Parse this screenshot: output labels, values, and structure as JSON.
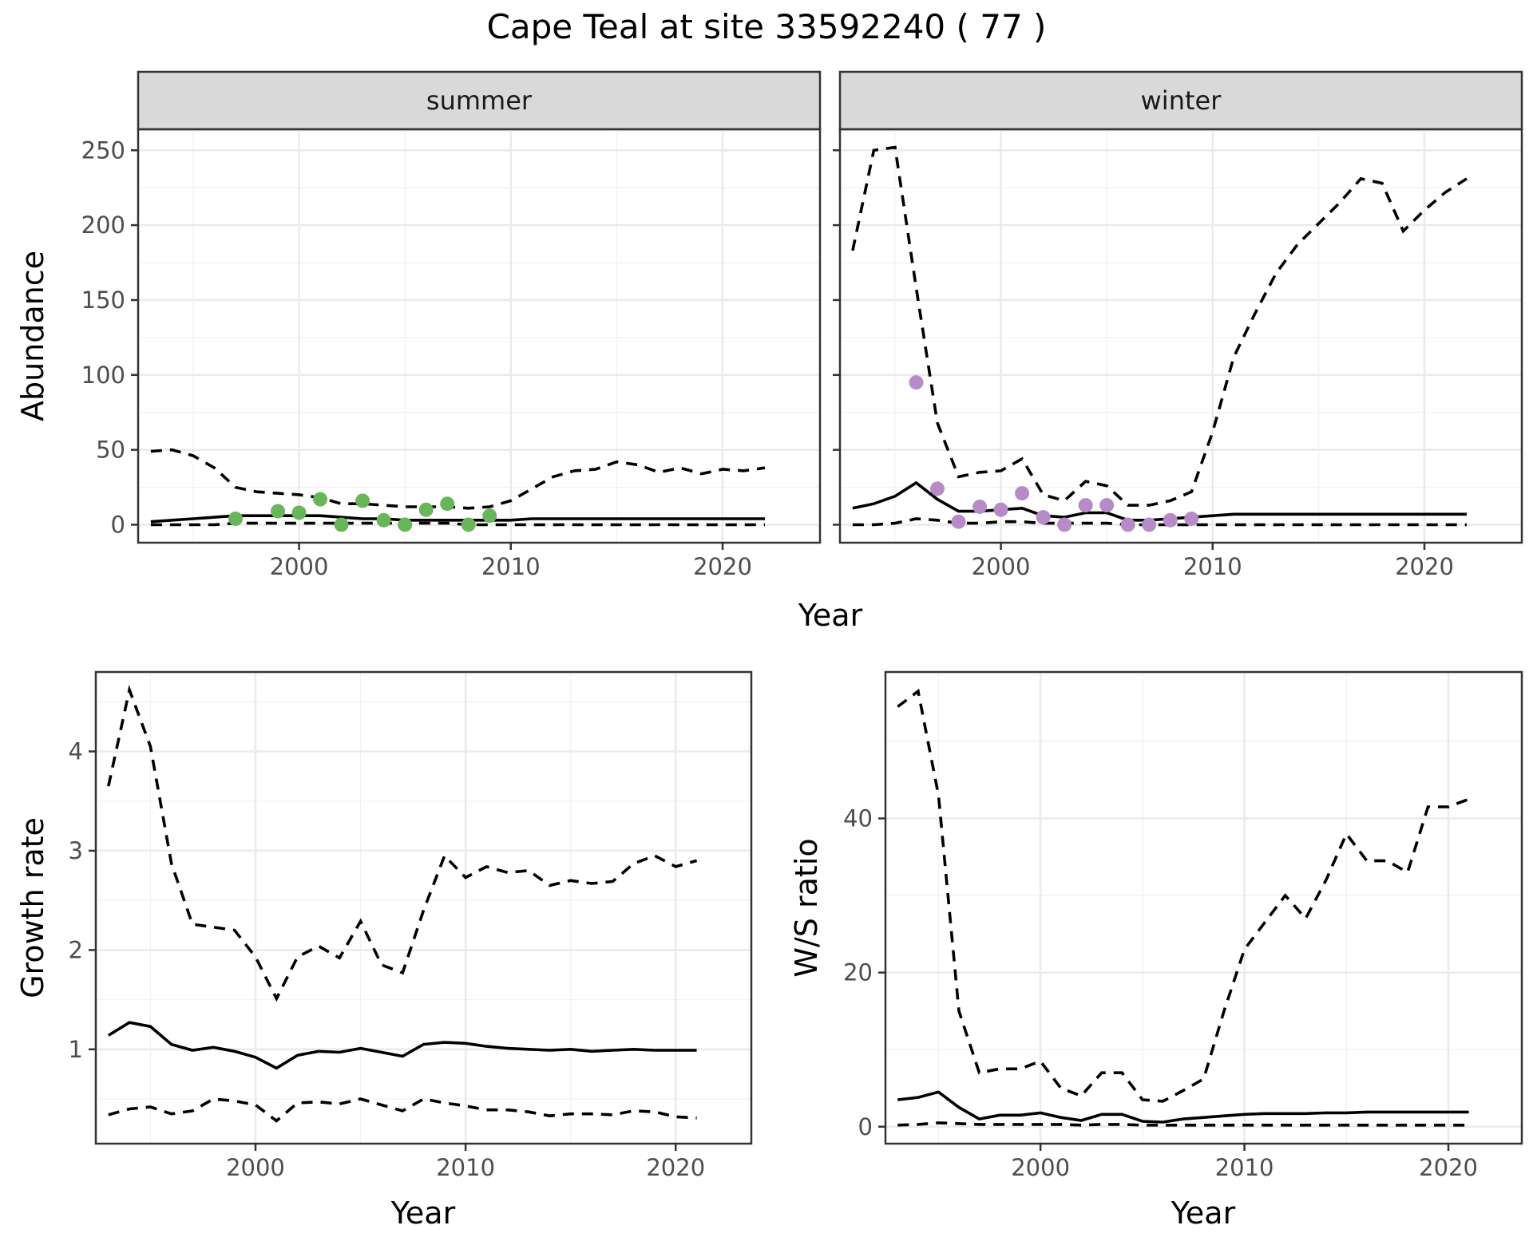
{
  "title": "Cape Teal at site 33592240 ( 77 )",
  "colors": {
    "summer_points": "#69b55a",
    "winter_points": "#b68bc8",
    "lines": "#000000"
  },
  "chart_data": [
    {
      "type": "line",
      "panel": "summer",
      "strip_label": "summer",
      "xlabel": "Year",
      "ylabel": "Abundance",
      "xlim": [
        1992.4,
        2024.6
      ],
      "ylim": [
        -12,
        264
      ],
      "x_ticks": [
        2000,
        2010,
        2020
      ],
      "y_ticks": [
        0,
        50,
        100,
        150,
        200,
        250
      ],
      "grid": true,
      "series": [
        {
          "style": "solid",
          "x": [
            1993,
            1994,
            1995,
            1996,
            1997,
            1998,
            1999,
            2000,
            2001,
            2002,
            2003,
            2004,
            2005,
            2006,
            2007,
            2008,
            2009,
            2010,
            2011,
            2012,
            2013,
            2014,
            2015,
            2016,
            2017,
            2018,
            2019,
            2020,
            2021,
            2022
          ],
          "values": [
            2,
            3,
            4,
            5,
            6,
            6,
            6,
            6,
            6,
            5,
            4,
            4,
            3,
            3,
            3,
            3,
            3,
            3,
            4,
            4,
            4,
            4,
            4,
            4,
            4,
            4,
            4,
            4,
            4,
            4
          ]
        },
        {
          "style": "dashed",
          "x": [
            1993,
            1994,
            1995,
            1996,
            1997,
            1998,
            1999,
            2000,
            2001,
            2002,
            2003,
            2004,
            2005,
            2006,
            2007,
            2008,
            2009,
            2010,
            2011,
            2012,
            2013,
            2014,
            2015,
            2016,
            2017,
            2018,
            2019,
            2020,
            2021,
            2022
          ],
          "values": [
            49,
            50,
            46,
            38,
            25,
            22,
            21,
            20,
            18,
            14,
            14,
            13,
            12,
            12,
            12,
            11,
            12,
            16,
            24,
            32,
            36,
            37,
            42,
            40,
            35,
            38,
            34,
            37,
            36,
            38
          ]
        },
        {
          "style": "dashed",
          "x": [
            1993,
            1994,
            1995,
            1996,
            1997,
            1998,
            1999,
            2000,
            2001,
            2002,
            2003,
            2004,
            2005,
            2006,
            2007,
            2008,
            2009,
            2010,
            2011,
            2012,
            2013,
            2014,
            2015,
            2016,
            2017,
            2018,
            2019,
            2020,
            2021,
            2022
          ],
          "values": [
            0,
            0,
            0,
            0,
            1,
            1,
            1,
            1,
            1,
            1,
            1,
            1,
            1,
            1,
            1,
            0,
            0,
            0,
            0,
            0,
            0,
            0,
            0,
            0,
            0,
            0,
            0,
            0,
            0,
            0
          ]
        },
        {
          "style": "points",
          "x": [
            1997,
            1999,
            2000,
            2001,
            2002,
            2003,
            2004,
            2005,
            2006,
            2007,
            2008,
            2009
          ],
          "values": [
            4,
            9,
            8,
            17,
            0,
            16,
            3,
            0,
            10,
            14,
            0,
            6
          ]
        }
      ]
    },
    {
      "type": "line",
      "panel": "winter",
      "strip_label": "winter",
      "xlabel": "Year",
      "ylabel": "Abundance",
      "xlim": [
        1992.4,
        2024.6
      ],
      "ylim": [
        -12,
        264
      ],
      "x_ticks": [
        2000,
        2010,
        2020
      ],
      "y_ticks": [
        0,
        50,
        100,
        150,
        200,
        250
      ],
      "grid": true,
      "series": [
        {
          "style": "solid",
          "x": [
            1993,
            1994,
            1995,
            1996,
            1997,
            1998,
            1999,
            2000,
            2001,
            2002,
            2003,
            2004,
            2005,
            2006,
            2007,
            2008,
            2009,
            2010,
            2011,
            2012,
            2013,
            2014,
            2015,
            2016,
            2017,
            2018,
            2019,
            2020,
            2021,
            2022
          ],
          "values": [
            11,
            14,
            19,
            28,
            17,
            9,
            9,
            10,
            11,
            6,
            5,
            8,
            8,
            3,
            3,
            4,
            5,
            6,
            7,
            7,
            7,
            7,
            7,
            7,
            7,
            7,
            7,
            7,
            7,
            7
          ]
        },
        {
          "style": "dashed",
          "x": [
            1993,
            1994,
            1995,
            1996,
            1997,
            1998,
            1999,
            2000,
            2001,
            2002,
            2003,
            2004,
            2005,
            2006,
            2007,
            2008,
            2009,
            2010,
            2011,
            2012,
            2013,
            2014,
            2015,
            2016,
            2017,
            2018,
            2019,
            2020,
            2021,
            2022
          ],
          "values": [
            183,
            250,
            252,
            158,
            68,
            32,
            35,
            36,
            44,
            20,
            16,
            29,
            26,
            13,
            13,
            16,
            22,
            62,
            112,
            141,
            168,
            187,
            201,
            215,
            231,
            228,
            196,
            210,
            222,
            231
          ]
        },
        {
          "style": "dashed",
          "x": [
            1993,
            1994,
            1995,
            1996,
            1997,
            1998,
            1999,
            2000,
            2001,
            2002,
            2003,
            2004,
            2005,
            2006,
            2007,
            2008,
            2009,
            2010,
            2011,
            2012,
            2013,
            2014,
            2015,
            2016,
            2017,
            2018,
            2019,
            2020,
            2021,
            2022
          ],
          "values": [
            0,
            0,
            1,
            4,
            3,
            1,
            1,
            2,
            2,
            1,
            1,
            1,
            1,
            0,
            0,
            0,
            0,
            0,
            0,
            0,
            0,
            0,
            0,
            0,
            0,
            0,
            0,
            0,
            0,
            0
          ]
        },
        {
          "style": "points",
          "x": [
            1996,
            1997,
            1998,
            1999,
            2000,
            2001,
            2002,
            2003,
            2004,
            2005,
            2006,
            2007,
            2008,
            2009
          ],
          "values": [
            95,
            24,
            2,
            12,
            10,
            21,
            5,
            0,
            13,
            13,
            0,
            0,
            3,
            4
          ]
        }
      ]
    },
    {
      "type": "line",
      "panel": "growth",
      "xlabel": "Year",
      "ylabel": "Growth rate",
      "xlim": [
        1992.4,
        2023.6
      ],
      "ylim": [
        0.05,
        4.8
      ],
      "x_ticks": [
        2000,
        2010,
        2020
      ],
      "y_ticks": [
        1,
        2,
        3,
        4
      ],
      "grid": true,
      "series": [
        {
          "style": "solid",
          "x": [
            1993,
            1994,
            1995,
            1996,
            1997,
            1998,
            1999,
            2000,
            2001,
            2002,
            2003,
            2004,
            2005,
            2006,
            2007,
            2008,
            2009,
            2010,
            2011,
            2012,
            2013,
            2014,
            2015,
            2016,
            2017,
            2018,
            2019,
            2020,
            2021
          ],
          "values": [
            1.14,
            1.27,
            1.23,
            1.05,
            0.99,
            1.02,
            0.98,
            0.92,
            0.81,
            0.94,
            0.98,
            0.97,
            1.01,
            0.97,
            0.93,
            1.05,
            1.07,
            1.06,
            1.03,
            1.01,
            1.0,
            0.99,
            1.0,
            0.98,
            0.99,
            1.0,
            0.99,
            0.99,
            0.99
          ]
        },
        {
          "style": "dashed",
          "x": [
            1993,
            1994,
            1995,
            1996,
            1997,
            1998,
            1999,
            2000,
            2001,
            2002,
            2003,
            2004,
            2005,
            2006,
            2007,
            2008,
            2009,
            2010,
            2011,
            2012,
            2013,
            2014,
            2015,
            2016,
            2017,
            2018,
            2019,
            2020,
            2021
          ],
          "values": [
            3.65,
            4.62,
            4.05,
            2.87,
            2.26,
            2.23,
            2.2,
            1.93,
            1.51,
            1.93,
            2.04,
            1.92,
            2.29,
            1.85,
            1.77,
            2.4,
            2.95,
            2.73,
            2.84,
            2.78,
            2.8,
            2.65,
            2.7,
            2.67,
            2.69,
            2.87,
            2.95,
            2.84,
            2.9
          ]
        },
        {
          "style": "dashed",
          "x": [
            1993,
            1994,
            1995,
            1996,
            1997,
            1998,
            1999,
            2000,
            2001,
            2002,
            2003,
            2004,
            2005,
            2006,
            2007,
            2008,
            2009,
            2010,
            2011,
            2012,
            2013,
            2014,
            2015,
            2016,
            2017,
            2018,
            2019,
            2020,
            2021
          ],
          "values": [
            0.34,
            0.4,
            0.42,
            0.35,
            0.38,
            0.5,
            0.48,
            0.44,
            0.28,
            0.46,
            0.47,
            0.45,
            0.5,
            0.44,
            0.38,
            0.5,
            0.46,
            0.43,
            0.39,
            0.39,
            0.37,
            0.33,
            0.35,
            0.35,
            0.34,
            0.38,
            0.37,
            0.32,
            0.31
          ]
        }
      ]
    },
    {
      "type": "line",
      "panel": "ratio",
      "xlabel": "Year",
      "ylabel": "W/S ratio",
      "xlim": [
        1992.4,
        2023.6
      ],
      "ylim": [
        -2.2,
        59
      ],
      "x_ticks": [
        2000,
        2010,
        2020
      ],
      "y_ticks": [
        0,
        20,
        40
      ],
      "grid": true,
      "series": [
        {
          "style": "solid",
          "x": [
            1993,
            1994,
            1995,
            1996,
            1997,
            1998,
            1999,
            2000,
            2001,
            2002,
            2003,
            2004,
            2005,
            2006,
            2007,
            2008,
            2009,
            2010,
            2011,
            2012,
            2013,
            2014,
            2015,
            2016,
            2017,
            2018,
            2019,
            2020,
            2021
          ],
          "values": [
            3.5,
            3.8,
            4.5,
            2.5,
            1.0,
            1.5,
            1.5,
            1.8,
            1.2,
            0.8,
            1.6,
            1.6,
            0.7,
            0.6,
            1.0,
            1.2,
            1.4,
            1.6,
            1.7,
            1.7,
            1.7,
            1.8,
            1.8,
            1.9,
            1.9,
            1.9,
            1.9,
            1.9,
            1.9
          ]
        },
        {
          "style": "dashed",
          "x": [
            1993,
            1994,
            1995,
            1996,
            1997,
            1998,
            1999,
            2000,
            2001,
            2002,
            2003,
            2004,
            2005,
            2006,
            2007,
            2008,
            2009,
            2010,
            2011,
            2012,
            2013,
            2014,
            2015,
            2016,
            2017,
            2018,
            2019,
            2020,
            2021
          ],
          "values": [
            54.5,
            56.5,
            43,
            15,
            7,
            7.5,
            7.5,
            8.5,
            5,
            4,
            7,
            7,
            3.5,
            3.3,
            4.7,
            6.2,
            15,
            23,
            26.5,
            30,
            27,
            32,
            38,
            34.5,
            34.5,
            33,
            41.5,
            41.5,
            42.5
          ]
        },
        {
          "style": "dashed",
          "x": [
            1993,
            1994,
            1995,
            1996,
            1997,
            1998,
            1999,
            2000,
            2001,
            2002,
            2003,
            2004,
            2005,
            2006,
            2007,
            2008,
            2009,
            2010,
            2011,
            2012,
            2013,
            2014,
            2015,
            2016,
            2017,
            2018,
            2019,
            2020,
            2021
          ],
          "values": [
            0.2,
            0.3,
            0.5,
            0.4,
            0.3,
            0.3,
            0.3,
            0.3,
            0.3,
            0.2,
            0.3,
            0.3,
            0.2,
            0.2,
            0.2,
            0.2,
            0.2,
            0.2,
            0.2,
            0.2,
            0.2,
            0.2,
            0.2,
            0.2,
            0.2,
            0.2,
            0.2,
            0.2,
            0.2
          ]
        }
      ]
    }
  ]
}
